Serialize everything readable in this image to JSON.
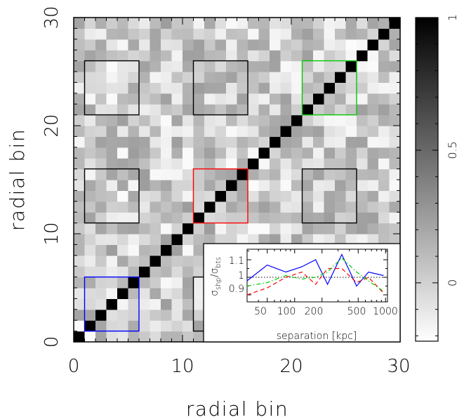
{
  "chart_data": [
    {
      "type": "heatmap",
      "title": "",
      "xlabel": "radial bin",
      "ylabel": "radial bin",
      "xlim": [
        0,
        30
      ],
      "ylim": [
        0,
        30
      ],
      "xticks": [
        "0",
        "10",
        "20",
        "30"
      ],
      "yticks": [
        "0",
        "10",
        "20",
        "30"
      ],
      "n_bins": 30,
      "diagonal_value": 1,
      "offdiagonal_range": [
        -0.2,
        0.25
      ],
      "colormap": {
        "low_color": "#ffffff",
        "high_color": "#000000"
      },
      "colorbar": {
        "range": [
          -0.22,
          1.0
        ],
        "ticks": [
          "0",
          "0.5",
          "1"
        ],
        "tick_values": [
          0,
          0.5,
          1
        ]
      },
      "highlight_boxes": [
        {
          "x": [
            1,
            6
          ],
          "y": [
            1,
            6
          ],
          "color": "#0000ff"
        },
        {
          "x": [
            11,
            16
          ],
          "y": [
            11,
            16
          ],
          "color": "#ff0000"
        },
        {
          "x": [
            21,
            26
          ],
          "y": [
            21,
            26
          ],
          "color": "#00cc00"
        },
        {
          "x": [
            1,
            6
          ],
          "y": [
            11,
            16
          ],
          "color": "#000000"
        },
        {
          "x": [
            1,
            6
          ],
          "y": [
            21,
            26
          ],
          "color": "#000000"
        },
        {
          "x": [
            11,
            16
          ],
          "y": [
            21,
            26
          ],
          "color": "#000000"
        },
        {
          "x": [
            21,
            26
          ],
          "y": [
            11,
            16
          ],
          "color": "#000000"
        },
        {
          "x": [
            11,
            16
          ],
          "y": [
            1,
            6
          ],
          "color": "#000000"
        }
      ]
    },
    {
      "type": "line",
      "title": "",
      "xlabel": "separation [kpc]",
      "ylabel_main": "σ",
      "ylabel_sub1": "shp",
      "ylabel_sep": "/σ",
      "ylabel_sub2": "bts",
      "xscale": "log",
      "xlim": [
        30,
        1050
      ],
      "ylim": [
        0.86,
        1.16
      ],
      "xticks": [
        "50",
        "100",
        "200",
        "500",
        "1000"
      ],
      "xtick_values": [
        50,
        100,
        200,
        500,
        1000
      ],
      "yticks": [
        "0.9",
        "1",
        "1.1"
      ],
      "ytick_values": [
        0.9,
        1.0,
        1.1
      ],
      "reference_line": 1.0,
      "x": [
        30,
        50,
        80,
        120,
        170,
        230,
        330,
        480,
        650,
        950
      ],
      "series": [
        {
          "color": "#0000ff",
          "dash": "solid",
          "values": [
            0.98,
            1.07,
            1.03,
            1.06,
            1.1,
            0.96,
            1.13,
            0.95,
            1.03,
            1.01
          ]
        },
        {
          "color": "#ff0000",
          "dash": "dashed",
          "values": [
            0.9,
            0.94,
            1.0,
            1.03,
            0.96,
            1.05,
            1.05,
            0.97,
            1.0,
            0.91
          ]
        },
        {
          "color": "#00cc00",
          "dash": "dashdot",
          "values": [
            0.95,
            0.97,
            1.01,
            0.99,
            1.0,
            1.03,
            1.11,
            1.03,
            0.98,
            0.92
          ]
        }
      ]
    }
  ]
}
